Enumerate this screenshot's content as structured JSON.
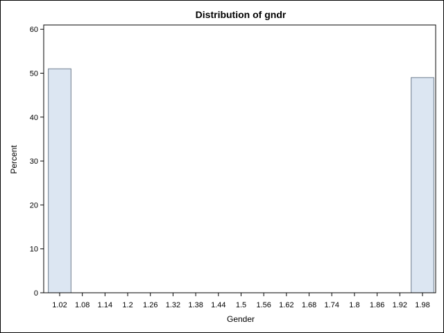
{
  "chart_data": {
    "type": "bar",
    "title": "Distribution of gndr",
    "xlabel": "Gender",
    "ylabel": "Percent",
    "x_ticks": [
      "1.02",
      "1.08",
      "1.14",
      "1.2",
      "1.26",
      "1.32",
      "1.38",
      "1.44",
      "1.5",
      "1.56",
      "1.62",
      "1.68",
      "1.74",
      "1.8",
      "1.86",
      "1.92",
      "1.98"
    ],
    "y_ticks": [
      0,
      10,
      20,
      30,
      40,
      50,
      60
    ],
    "ylim": [
      0,
      61
    ],
    "bin_width": 0.06,
    "bins": [
      {
        "x": 1.02,
        "value": 51
      },
      {
        "x": 1.08,
        "value": 0
      },
      {
        "x": 1.14,
        "value": 0
      },
      {
        "x": 1.2,
        "value": 0
      },
      {
        "x": 1.26,
        "value": 0
      },
      {
        "x": 1.32,
        "value": 0
      },
      {
        "x": 1.38,
        "value": 0
      },
      {
        "x": 1.44,
        "value": 0
      },
      {
        "x": 1.5,
        "value": 0
      },
      {
        "x": 1.56,
        "value": 0
      },
      {
        "x": 1.62,
        "value": 0
      },
      {
        "x": 1.68,
        "value": 0
      },
      {
        "x": 1.74,
        "value": 0
      },
      {
        "x": 1.8,
        "value": 0
      },
      {
        "x": 1.86,
        "value": 0
      },
      {
        "x": 1.92,
        "value": 0
      },
      {
        "x": 1.98,
        "value": 49
      }
    ],
    "grid": false,
    "colors": {
      "bar_fill": "#dce6f2",
      "bar_stroke": "#6d7b8d",
      "axis": "#000000"
    }
  }
}
